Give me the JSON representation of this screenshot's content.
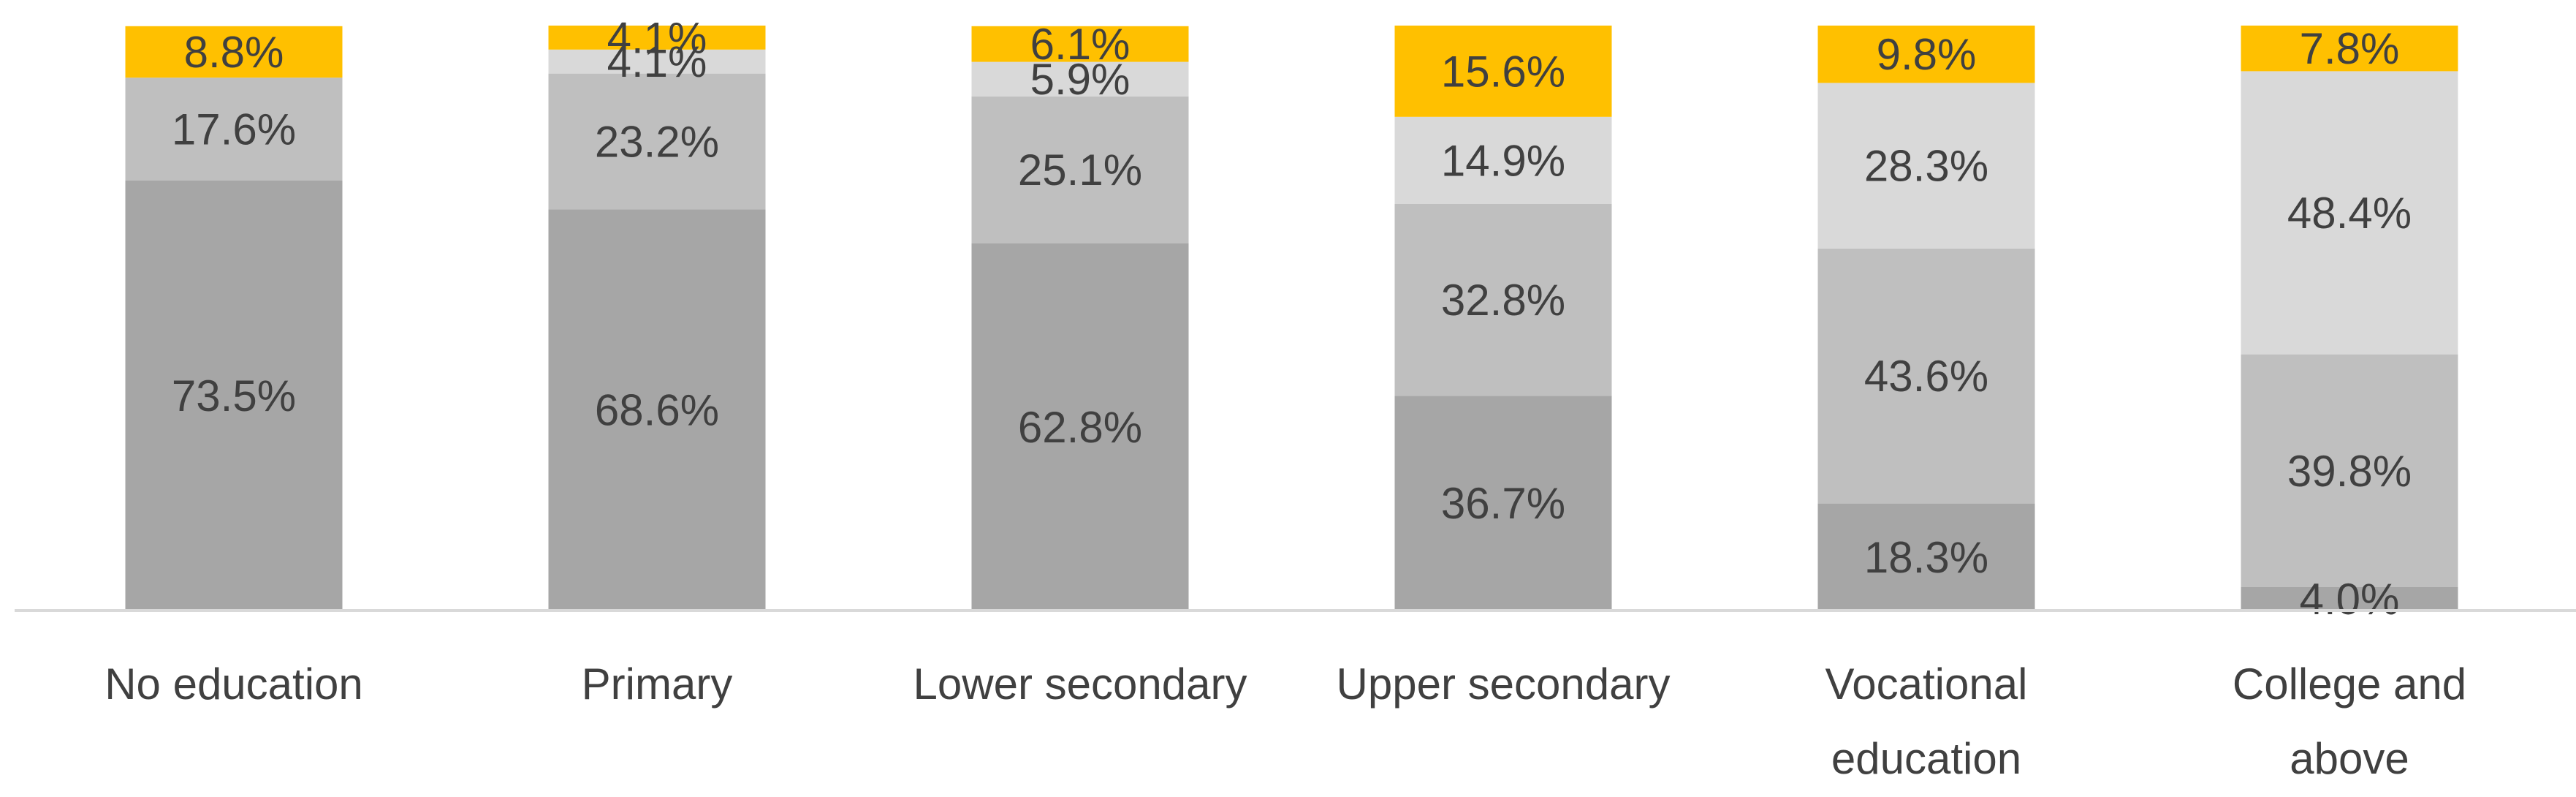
{
  "chart_data": {
    "type": "bar",
    "stacked": true,
    "categories": [
      [
        "No education"
      ],
      [
        "Primary"
      ],
      [
        "Lower secondary"
      ],
      [
        "Upper secondary"
      ],
      [
        "Vocational",
        "education"
      ],
      [
        "College and",
        "above"
      ]
    ],
    "series": [
      {
        "color": "#a6a6a6",
        "values": [
          73.5,
          68.6,
          62.8,
          36.7,
          18.3,
          4.0
        ],
        "labels": [
          "73.5%",
          "68.6%",
          "62.8%",
          "36.7%",
          "18.3%",
          "4.0%"
        ]
      },
      {
        "color": "#bfbfbf",
        "values": [
          17.6,
          23.2,
          25.1,
          32.8,
          43.6,
          39.8
        ],
        "labels": [
          "17.6%",
          "23.2%",
          "25.1%",
          "32.8%",
          "43.6%",
          "39.8%"
        ]
      },
      {
        "color": "#d9d9d9",
        "values": [
          0,
          4.1,
          5.9,
          14.9,
          28.3,
          48.4
        ],
        "labels": [
          "",
          "4.1%",
          "5.9%",
          "14.9%",
          "28.3%",
          "48.4%"
        ]
      },
      {
        "color": "#ffc000",
        "values": [
          8.8,
          4.1,
          6.1,
          15.6,
          9.8,
          7.8
        ],
        "labels": [
          "8.8%",
          "4.1%",
          "6.1%",
          "15.6%",
          "9.8%",
          "7.8%"
        ]
      }
    ],
    "ylim": [
      0,
      100
    ],
    "legend": "none",
    "grid": false,
    "colors": {
      "axis": "#d9d9d9",
      "text": "#404040"
    }
  }
}
